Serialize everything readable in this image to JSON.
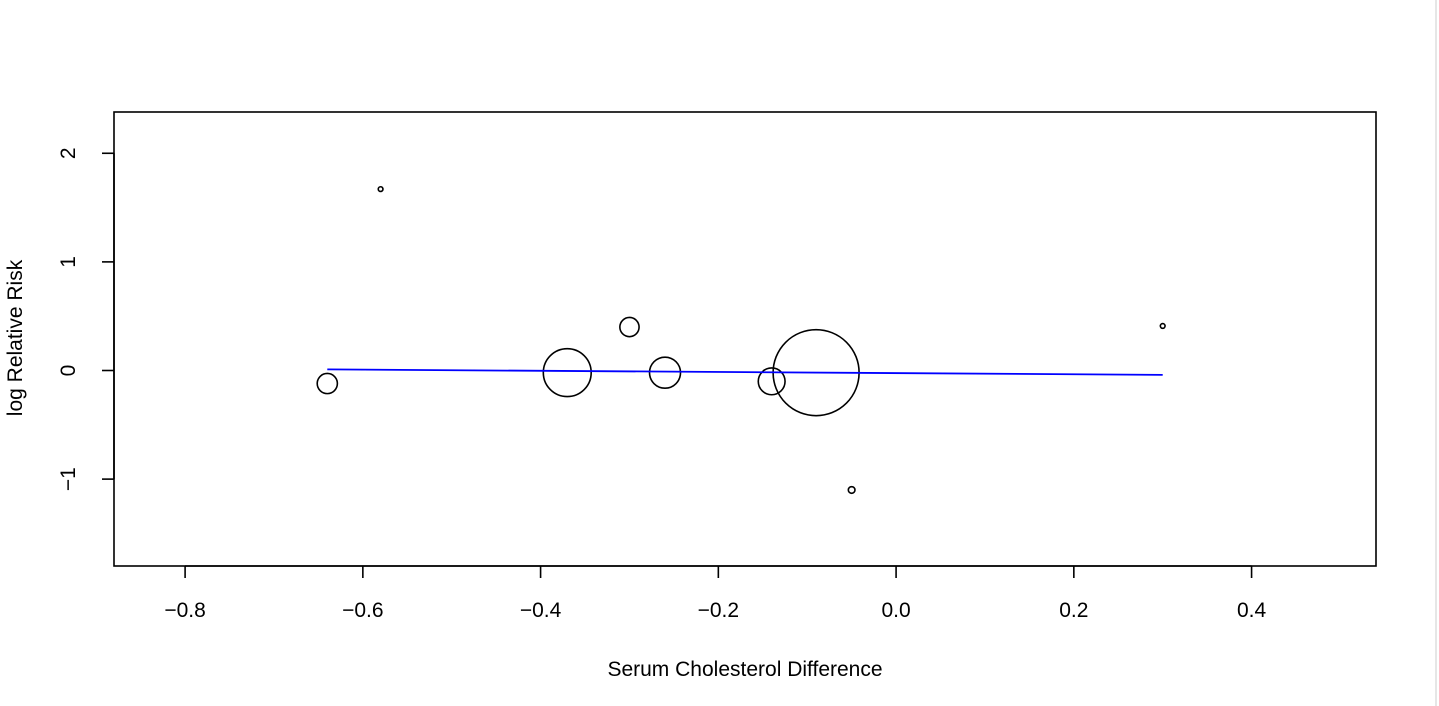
{
  "chart_data": {
    "type": "scatter",
    "title": "",
    "xlabel": "Serum Cholesterol Difference",
    "ylabel": "log Relative Risk",
    "xlim": [
      -0.88,
      0.54
    ],
    "ylim": [
      -1.8,
      2.38
    ],
    "x_ticks": [
      -0.8,
      -0.6,
      -0.4,
      -0.2,
      0.0,
      0.2,
      0.4
    ],
    "x_tick_labels": [
      "−0.8",
      "−0.6",
      "−0.4",
      "−0.2",
      "0.0",
      "0.2",
      "0.4"
    ],
    "y_ticks": [
      -1,
      0,
      1,
      2
    ],
    "y_tick_labels": [
      "−1",
      "0",
      "1",
      "2"
    ],
    "grid": false,
    "points": [
      {
        "x": -0.64,
        "y": -0.12,
        "weight": 0.055
      },
      {
        "x": -0.58,
        "y": 1.67,
        "weight": 0.003
      },
      {
        "x": -0.37,
        "y": -0.02,
        "weight": 0.31
      },
      {
        "x": -0.3,
        "y": 0.4,
        "weight": 0.05
      },
      {
        "x": -0.26,
        "y": -0.02,
        "weight": 0.13
      },
      {
        "x": -0.14,
        "y": -0.1,
        "weight": 0.097
      },
      {
        "x": -0.09,
        "y": -0.02,
        "weight": 1.0
      },
      {
        "x": -0.05,
        "y": -1.1,
        "weight": 0.006
      },
      {
        "x": 0.3,
        "y": 0.41,
        "weight": 0.003
      }
    ],
    "fit_line": {
      "color": "#0000ff",
      "x": [
        -0.64,
        0.3
      ],
      "y": [
        0.01,
        -0.04
      ]
    },
    "colors": {
      "points": "#000000",
      "fit_line": "#0000ff"
    }
  }
}
